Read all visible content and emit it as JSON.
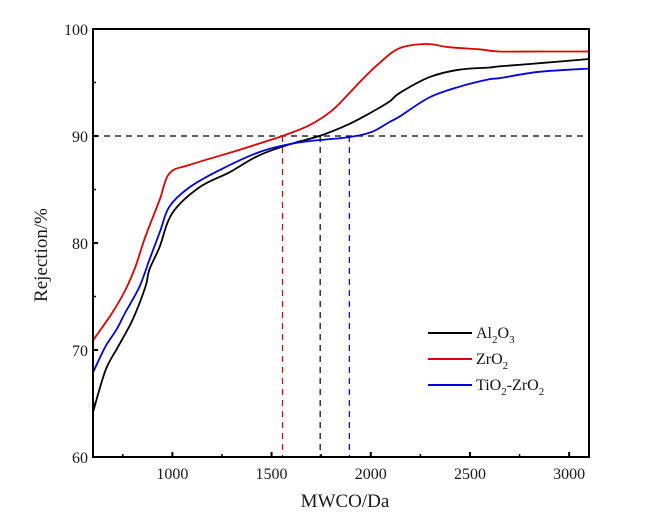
{
  "chart_data": {
    "type": "line",
    "title": "",
    "xlabel": "MWCO/Da",
    "ylabel": "Rejection/%",
    "xlim": [
      600,
      3100
    ],
    "ylim": [
      60,
      100
    ],
    "xticks": [
      1000,
      1500,
      2000,
      2500,
      3000
    ],
    "xtick_labels": [
      "1000",
      "1500",
      "2000",
      "2500",
      "3000"
    ],
    "xminor_ticks": [
      750,
      1250,
      1750,
      2250,
      2750
    ],
    "yticks": [
      60,
      70,
      80,
      90,
      100
    ],
    "ytick_labels": [
      "60",
      "70",
      "80",
      "90",
      "100"
    ],
    "yminor_ticks": [
      65,
      75,
      85,
      95
    ],
    "grid": false,
    "legend_position": "bottom-right",
    "reference_lines": {
      "horizontal": {
        "y": 90,
        "color": "#000000",
        "style": "dashed"
      },
      "vertical": [
        {
          "x": 1555,
          "color": "#e00000",
          "series": "ZrO2",
          "style": "dashed"
        },
        {
          "x": 1745,
          "color": "#000000",
          "series": "Al2O3",
          "style": "dashed"
        },
        {
          "x": 1892,
          "color": "#0000e0",
          "series": "TiO2-ZrO2",
          "style": "dashed"
        }
      ]
    },
    "series": [
      {
        "name": "Al2O3",
        "legend_parts": [
          [
            "Al",
            ""
          ],
          [
            "2",
            "sub"
          ],
          [
            "O",
            ""
          ],
          [
            "3",
            "sub"
          ]
        ],
        "color": "#000000",
        "x": [
          600,
          663,
          723,
          799,
          864,
          884,
          935,
          1000,
          1136,
          1287,
          1438,
          1605,
          1741,
          1877,
          1992,
          2093,
          2144,
          2295,
          2446,
          2597,
          2647,
          2849,
          3100
        ],
        "y": [
          64.2,
          68.1,
          70.2,
          72.8,
          75.9,
          77.5,
          79.6,
          82.8,
          85.2,
          86.6,
          88.2,
          89.3,
          90.0,
          91.0,
          92.1,
          93.2,
          94.0,
          95.5,
          96.2,
          96.4,
          96.5,
          96.8,
          97.2
        ]
      },
      {
        "name": "ZrO2",
        "legend_parts": [
          [
            "ZrO",
            ""
          ],
          [
            "2",
            "sub"
          ]
        ],
        "color": "#e00000",
        "x": [
          600,
          698,
          763,
          814,
          864,
          935,
          985,
          1086,
          1338,
          1438,
          1554,
          1690,
          1806,
          1907,
          1942,
          2043,
          2144,
          2280,
          2395,
          2547,
          2647,
          2849,
          3100
        ],
        "y": [
          70.9,
          73.5,
          75.6,
          77.8,
          80.6,
          84.0,
          86.5,
          87.3,
          88.7,
          89.3,
          90.0,
          91.0,
          92.4,
          94.3,
          95.0,
          96.8,
          98.2,
          98.6,
          98.3,
          98.1,
          97.9,
          97.9,
          97.9
        ]
      },
      {
        "name": "TiO2-ZrO2",
        "legend_parts": [
          [
            "TiO",
            ""
          ],
          [
            "2",
            "sub"
          ],
          [
            "-ZrO",
            ""
          ],
          [
            "2",
            "sub"
          ]
        ],
        "color": "#0000e0",
        "x": [
          600,
          662,
          718,
          763,
          834,
          884,
          940,
          985,
          1086,
          1237,
          1438,
          1640,
          1892,
          2008,
          2093,
          2144,
          2295,
          2446,
          2597,
          2647,
          2849,
          3100
        ],
        "y": [
          67.9,
          70.3,
          71.9,
          73.5,
          75.9,
          78.4,
          81.2,
          83.4,
          85.2,
          86.8,
          88.5,
          89.4,
          89.9,
          90.4,
          91.3,
          91.8,
          93.6,
          94.6,
          95.3,
          95.4,
          96.0,
          96.3
        ]
      }
    ]
  }
}
